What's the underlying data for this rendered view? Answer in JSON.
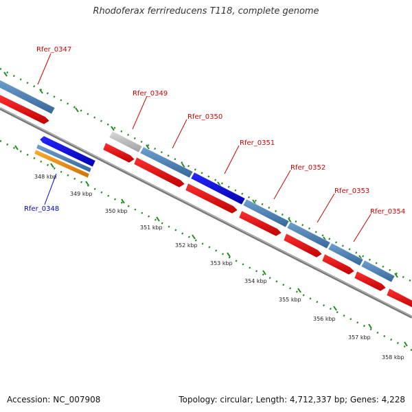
{
  "title": "Rhodoferax ferrireducens T118, complete genome",
  "footer": {
    "accession": "Accession: NC_007908",
    "stats": "Topology: circular; Length: 4,712,337 bp; Genes: 4,228"
  },
  "colors": {
    "gene_label": "#cc0000",
    "gene_label_alt": "#0000cc",
    "cds_forward": "#4a7fb5",
    "cds_red": "#e81212",
    "cds_blue": "#1010e0",
    "cds_grey": "#b8b8b8",
    "cds_orange": "#f0900a",
    "ticks": "#1a8a1a",
    "backbone": "#888888"
  },
  "scale_labels": [
    "348 kbp",
    "349 kbp",
    "350 kbp",
    "351 kbp",
    "352 kbp",
    "353 kbp",
    "354 kbp",
    "355 kbp",
    "356 kbp",
    "357 kbp",
    "358 kbp"
  ],
  "gene_labels": [
    "Rfer_0347",
    "Rfer_0348",
    "Rfer_0349",
    "Rfer_0350",
    "Rfer_0351",
    "Rfer_0352",
    "Rfer_0353",
    "Rfer_0354"
  ]
}
